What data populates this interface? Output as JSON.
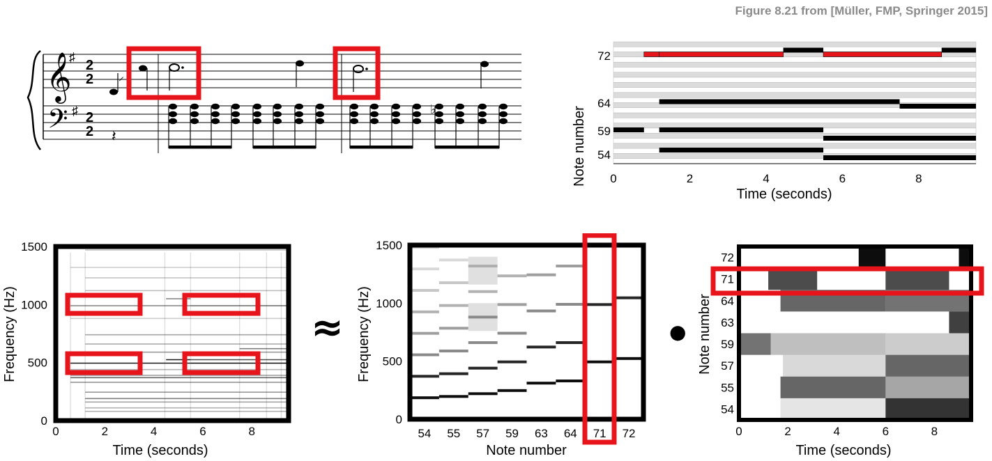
{
  "caption": "Figure 8.21 from [Müller, FMP, Springer 2015]",
  "score": {
    "time_signature_top": "2",
    "time_signature_bottom": "2",
    "flat_symbol": "♭"
  },
  "pianoroll": {
    "ylabel": "Note number",
    "xlabel": "Time (seconds)",
    "yticks": [
      "72",
      "64",
      "59",
      "54"
    ],
    "xticks": [
      "0",
      "2",
      "4",
      "6",
      "8"
    ]
  },
  "spectrogram": {
    "ylabel": "Frequency (Hz)",
    "xlabel": "Time (seconds)",
    "yticks": [
      "1500",
      "1000",
      "500",
      "0"
    ],
    "xticks": [
      "0",
      "2",
      "4",
      "6",
      "8"
    ]
  },
  "approx_symbol": "≈",
  "templates": {
    "ylabel": "Frequency (Hz)",
    "xlabel": "Note number",
    "yticks": [
      "1500",
      "1000",
      "500",
      "0"
    ],
    "xticks": [
      "54",
      "55",
      "57",
      "59",
      "63",
      "64",
      "71",
      "72"
    ]
  },
  "dot_symbol": "●",
  "activations": {
    "ylabel": "Note number",
    "xlabel": "Time (seconds)",
    "yticks": [
      "72",
      "71",
      "64",
      "63",
      "59",
      "57",
      "55",
      "54"
    ],
    "xticks": [
      "0",
      "2",
      "4",
      "6",
      "8"
    ]
  },
  "chart_data": [
    {
      "type": "bar",
      "description_source": "piano-roll",
      "title": "",
      "xlabel": "Time (seconds)",
      "ylabel": "Note number",
      "xlim": [
        0,
        9.5
      ],
      "series": [
        {
          "name": "72",
          "values": [
            [
              0.8,
              1.2,
              "red"
            ],
            [
              1.2,
              4.45,
              "red"
            ],
            [
              4.45,
              5.5,
              "black"
            ],
            [
              5.5,
              8.6,
              "red"
            ],
            [
              8.6,
              9.5,
              "black"
            ]
          ]
        },
        {
          "name": "64",
          "values": [
            [
              1.2,
              7.5
            ],
            [
              7.5,
              9.5
            ]
          ]
        },
        {
          "name": "59",
          "values": [
            [
              0,
              0.8
            ],
            [
              1.2,
              5.5
            ]
          ]
        },
        {
          "name": "54",
          "values": [
            [
              1.2,
              5.5
            ],
            [
              5.5,
              9.5
            ]
          ]
        }
      ],
      "colors": {
        "highlight": "#e8141b",
        "normal": "#000000"
      }
    },
    {
      "type": "heatmap",
      "description_source": "spectrogram",
      "xlabel": "Time (seconds)",
      "ylabel": "Frequency (Hz)",
      "xlim": [
        0,
        9.5
      ],
      "ylim": [
        0,
        1500
      ]
    },
    {
      "type": "heatmap",
      "description_source": "templates",
      "xlabel": "Note number",
      "ylabel": "Frequency (Hz)",
      "categories": [
        "54",
        "55",
        "57",
        "59",
        "63",
        "64",
        "71",
        "72"
      ],
      "ylim": [
        0,
        1500
      ]
    },
    {
      "type": "heatmap",
      "description_source": "activations",
      "xlabel": "Time (seconds)",
      "ylabel": "Note number",
      "categories": [
        "72",
        "71",
        "64",
        "63",
        "59",
        "57",
        "55",
        "54"
      ],
      "xlim": [
        0,
        9.5
      ]
    }
  ]
}
